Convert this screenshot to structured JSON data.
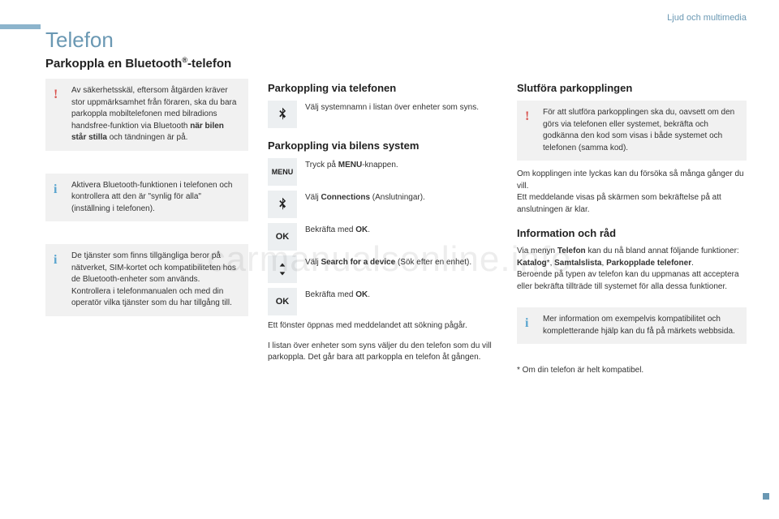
{
  "header": {
    "sectionLabel": "Ljud och multimedia"
  },
  "title": "Telefon",
  "subtitle_html": "Parkoppla en Bluetooth<sup style='font-size:9px'>®</sup>-telefon",
  "col1": {
    "warn_html": "Av säkerhetsskäl, eftersom åtgärden kräver stor uppmärksamhet från föraren, ska du bara parkoppla mobiltelefonen med bilradions handsfree-funktion via Bluetooth <b>när bilen står stilla</b> och tändningen är på.",
    "info1": "Aktivera Bluetooth-funktionen i telefonen och kontrollera att den är \"synlig för alla\" (inställning i telefonen).",
    "info2": "De tjänster som finns tillgängliga beror på nätverket, SIM-kortet och kompatibiliteten hos de Bluetooth-enheter som används.\nKontrollera i telefonmanualen och med din operatör vilka tjänster som du har tillgång till."
  },
  "col2": {
    "h1": "Parkoppling via telefonen",
    "r1": "Välj systemnamn i listan över enheter som syns.",
    "h2": "Parkoppling via bilens system",
    "r2_html": "Tryck på <b>MENU</b>-knappen.",
    "r3_html": "Välj <b>Connections</b> (Anslutningar).",
    "r4_html": "Bekräfta med <b>OK</b>.",
    "r5_html": "Välj <b>Search for a device</b> (Sök efter en enhet).",
    "r6_html": "Bekräfta med <b>OK</b>.",
    "p1": "Ett fönster öppnas med meddelandet att sökning pågår.",
    "p2": "I listan över enheter som syns väljer du den telefon som du vill parkoppla. Det går bara att parkoppla en telefon åt gången.",
    "menuLabel": "MENU",
    "okLabel": "OK"
  },
  "col3": {
    "h1": "Slutföra parkopplingen",
    "warn": "För att slutföra parkopplingen ska du, oavsett om den görs via telefonen eller systemet, bekräfta och godkänna den kod som visas i både systemet och telefonen (samma kod).",
    "p1": "Om kopplingen inte lyckas kan du försöka så många gånger du vill.\nEtt meddelande visas på skärmen som bekräftelse på att anslutningen är klar.",
    "h2": "Information och råd",
    "p2_html": "Via menyn <b>Telefon</b> kan du nå bland annat följande funktioner: <b>Katalog</b>*, <b>Samtalslista</b>, <b>Parkopplade telefoner</b>.<br>Beroende på typen av telefon kan du uppmanas att acceptera eller bekräfta tillträde till systemet för alla dessa funktioner.",
    "info": "Mer information om exempelvis kompatibilitet och kompletterande hjälp kan du få på märkets webbsida.",
    "footnote": "* Om din telefon är helt kompatibel."
  },
  "watermark": "carmanualsonline.info",
  "marks": {
    "warn": "!",
    "info": "i"
  }
}
